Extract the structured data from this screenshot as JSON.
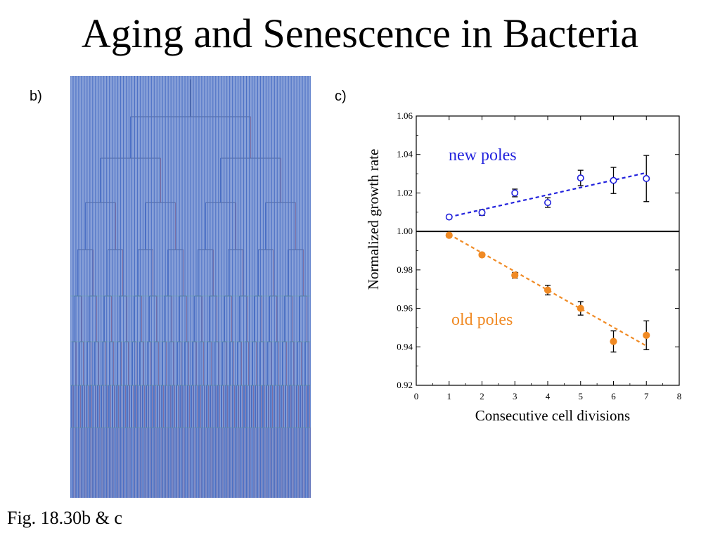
{
  "slide": {
    "title": "Aging and Senescence in Bacteria",
    "panel_b_label": "b)",
    "panel_c_label": "c)",
    "caption": "Fig. 18.30b & c"
  },
  "tree": {
    "colors": {
      "new_pole": "#4a6fc4",
      "old_pole": "#e0705e",
      "frame": "#5aa88c"
    },
    "generations": 8
  },
  "chart_data": {
    "type": "scatter",
    "xlabel": "Consecutive cell divisions",
    "ylabel": "Normalized growth rate",
    "xlim": [
      0,
      8
    ],
    "ylim": [
      0.92,
      1.06
    ],
    "xticks": [
      0,
      1,
      2,
      3,
      4,
      5,
      6,
      7,
      8
    ],
    "yticks": [
      0.92,
      0.94,
      0.96,
      0.98,
      1.0,
      1.02,
      1.04,
      1.06
    ],
    "ytick_labels": [
      "0.92",
      "0.94",
      "0.96",
      "0.98",
      "1.00",
      "1.02",
      "1.04",
      "1.06"
    ],
    "reference_line": 1.0,
    "series": [
      {
        "name": "new poles",
        "color": "#2222dd",
        "marker": "open-circle",
        "x": [
          1,
          2,
          3,
          4,
          5,
          6,
          7
        ],
        "y": [
          1.0075,
          1.0098,
          1.02,
          1.015,
          1.0278,
          1.0265,
          1.0275
        ],
        "err": [
          0.001,
          0.0015,
          0.002,
          0.0025,
          0.004,
          0.0068,
          0.012
        ],
        "fit": [
          [
            1,
            1.0075
          ],
          [
            7,
            1.0305
          ]
        ]
      },
      {
        "name": "old poles",
        "color": "#f08a24",
        "marker": "filled-circle",
        "x": [
          1,
          2,
          3,
          4,
          5,
          6,
          7
        ],
        "y": [
          0.998,
          0.9878,
          0.9772,
          0.9695,
          0.96,
          0.9428,
          0.946
        ],
        "err": [
          0.001,
          0.001,
          0.0015,
          0.0025,
          0.0035,
          0.0055,
          0.0075
        ],
        "fit": [
          [
            1,
            0.9985
          ],
          [
            7,
            0.9405
          ]
        ]
      }
    ]
  }
}
